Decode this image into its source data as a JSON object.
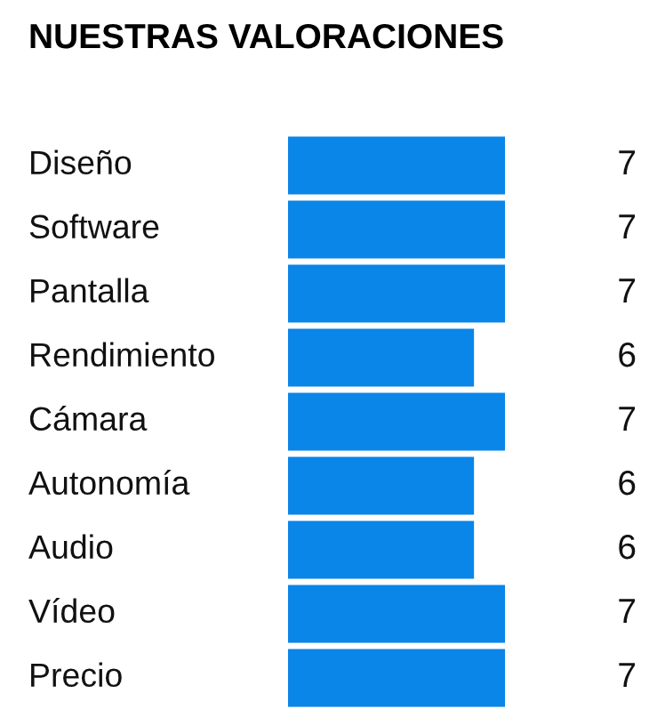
{
  "chart_data": {
    "type": "bar",
    "orientation": "horizontal",
    "title": "NUESTRAS VALORACIONES",
    "categories": [
      "Diseño",
      "Software",
      "Pantalla",
      "Rendimiento",
      "Cámara",
      "Autonomía",
      "Audio",
      "Vídeo",
      "Precio"
    ],
    "values": [
      7,
      7,
      7,
      6,
      7,
      6,
      6,
      7,
      7
    ],
    "color": "#0a85e8",
    "data_labels": true
  }
}
